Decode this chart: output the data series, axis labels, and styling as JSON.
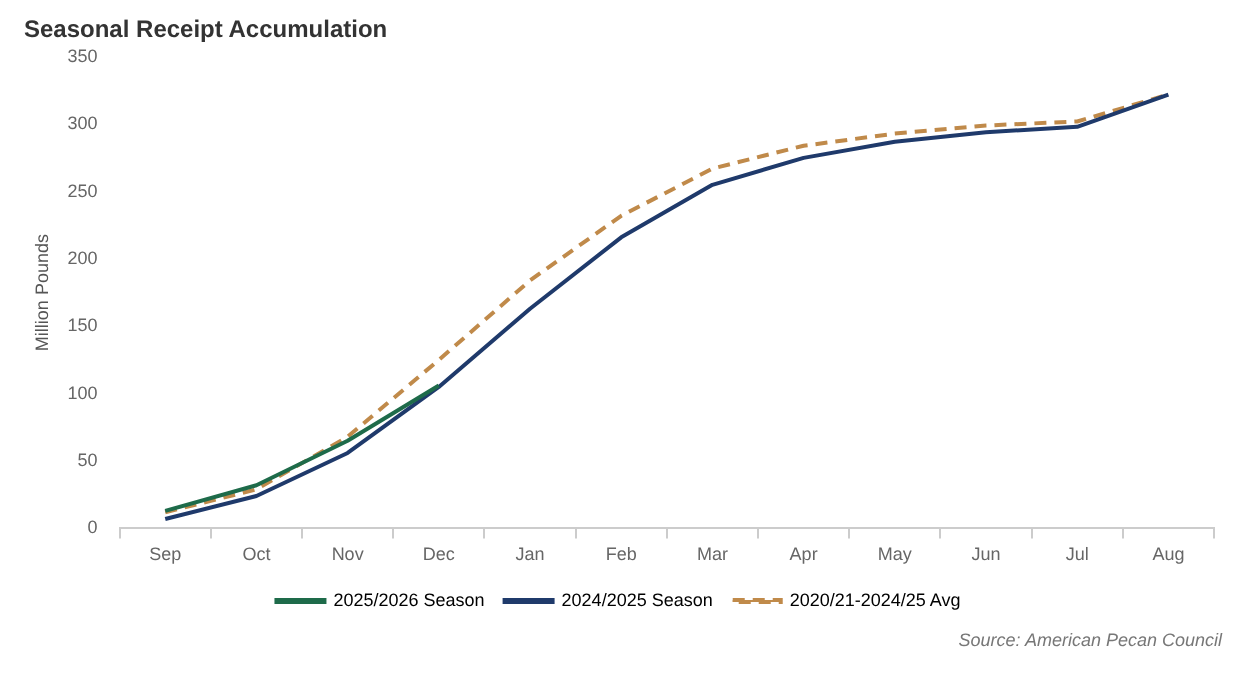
{
  "chart_data": {
    "type": "line",
    "title": "Seasonal Receipt Accumulation",
    "ylabel": "Million Pounds",
    "categories": [
      "Sep",
      "Oct",
      "Nov",
      "Dec",
      "Jan",
      "Feb",
      "Mar",
      "Apr",
      "May",
      "Jun",
      "Jul",
      "Aug"
    ],
    "series": [
      {
        "name": "2025/2026 Season",
        "color": "#1e6b4a",
        "values": [
          13,
          32,
          65,
          106,
          null,
          null,
          null,
          null,
          null,
          null,
          null,
          null
        ]
      },
      {
        "name": "2024/2025 Season",
        "color": "#1f3a6b",
        "values": [
          7,
          24,
          56,
          105,
          163,
          216,
          255,
          275,
          287,
          294,
          298,
          322
        ]
      },
      {
        "name": "2020/21-2024/25 Avg",
        "color": "#c08a4a",
        "line_style": "dashed",
        "values": [
          12,
          29,
          68,
          125,
          184,
          232,
          267,
          284,
          293,
          299,
          302,
          322
        ]
      }
    ],
    "ylim": [
      0,
      350
    ],
    "yticks": [
      0,
      50,
      100,
      150,
      200,
      250,
      300,
      350
    ],
    "grid": false,
    "legend": "bottom",
    "marker": "none",
    "annotations": [
      "Source: American Pecan Council"
    ]
  }
}
